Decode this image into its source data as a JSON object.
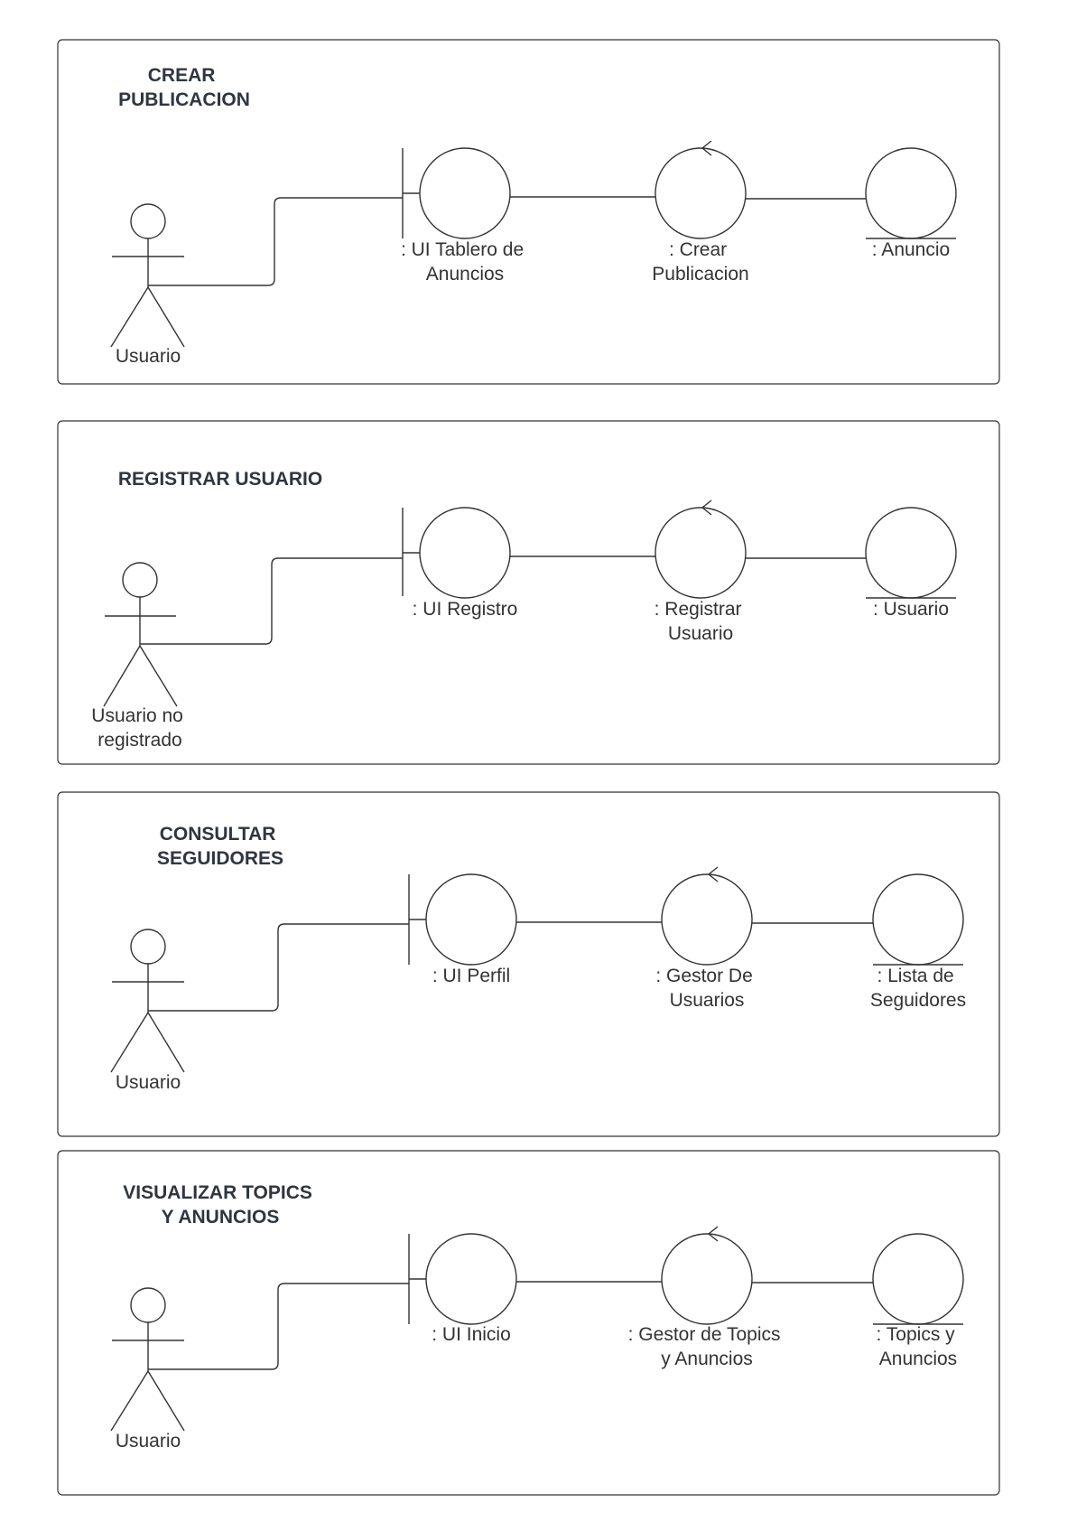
{
  "diagrams": [
    {
      "title": [
        "CREAR",
        "PUBLICACION"
      ],
      "actor": [
        "Usuario"
      ],
      "boundary": [
        ": UI Tablero de",
        "Anuncios"
      ],
      "control": [
        ": Crear",
        "Publicacion"
      ],
      "entity": [
        ": Anuncio"
      ]
    },
    {
      "title": [
        "REGISTRAR USUARIO"
      ],
      "actor": [
        "Usuario no",
        "registrado"
      ],
      "boundary": [
        ": UI Registro"
      ],
      "control": [
        ": Registrar",
        "Usuario"
      ],
      "entity": [
        ": Usuario"
      ]
    },
    {
      "title": [
        "CONSULTAR",
        "SEGUIDORES"
      ],
      "actor": [
        "Usuario"
      ],
      "boundary": [
        ": UI Perfil"
      ],
      "control": [
        ": Gestor De",
        "Usuarios"
      ],
      "entity": [
        ": Lista de",
        "Seguidores"
      ]
    },
    {
      "title": [
        "VISUALIZAR TOPICS",
        "Y ANUNCIOS"
      ],
      "actor": [
        "Usuario"
      ],
      "boundary": [
        ": UI Inicio"
      ],
      "control": [
        ": Gestor de Topics",
        "y Anuncios"
      ],
      "entity": [
        ": Topics y",
        "Anuncios"
      ]
    }
  ]
}
